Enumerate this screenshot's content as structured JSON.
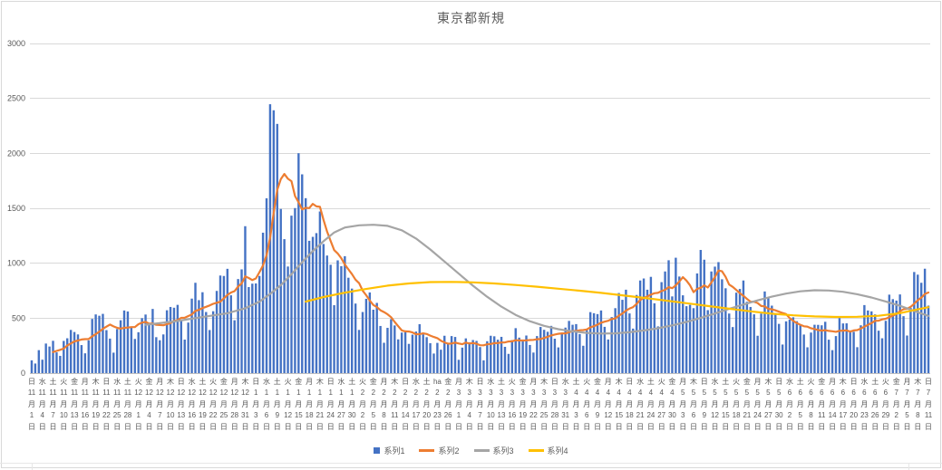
{
  "legend": [
    {
      "label": "系列1",
      "color": "#4472C4",
      "type": "bar"
    },
    {
      "label": "系列2",
      "color": "#ED7D31",
      "type": "line"
    },
    {
      "label": "系列3",
      "color": "#A5A5A5",
      "type": "line"
    },
    {
      "label": "系列4",
      "color": "#FFC000",
      "type": "line"
    }
  ],
  "chart_data": {
    "type": "combo",
    "title": "東京都新規",
    "grid": true,
    "legend_position": "bottom",
    "colors": {
      "grid": "#D9D9D9",
      "axis_text": "#595959",
      "axis_line": "#BFBFBF",
      "title": "#595959"
    },
    "y_axis": {
      "min": 0,
      "max": 3000,
      "step": 500,
      "ticks": [
        "0",
        "500",
        "1000",
        "1500",
        "2000",
        "2500",
        "3000"
      ]
    },
    "x_axis_note": "daily values 2020-11-01 to 2021-07-11, tick label every 3 days, vertical labels: weekday + M月D日",
    "x_tick_every": 3,
    "x_tick_labels": [
      [
        "日",
        "11",
        "1"
      ],
      [
        "水",
        "11",
        "4"
      ],
      [
        "土",
        "11",
        "7"
      ],
      [
        "火",
        "11",
        "10"
      ],
      [
        "金",
        "11",
        "13"
      ],
      [
        "月",
        "11",
        "16"
      ],
      [
        "木",
        "11",
        "19"
      ],
      [
        "日",
        "11",
        "22"
      ],
      [
        "水",
        "11",
        "25"
      ],
      [
        "土",
        "11",
        "28"
      ],
      [
        "火",
        "12",
        "1"
      ],
      [
        "金",
        "12",
        "4"
      ],
      [
        "月",
        "12",
        "7"
      ],
      [
        "木",
        "12",
        "10"
      ],
      [
        "日",
        "12",
        "13"
      ],
      [
        "水",
        "12",
        "16"
      ],
      [
        "土",
        "12",
        "19"
      ],
      [
        "火",
        "12",
        "22"
      ],
      [
        "金",
        "12",
        "25"
      ],
      [
        "月",
        "12",
        "28"
      ],
      [
        "木",
        "12",
        "31"
      ],
      [
        "日",
        "1",
        "3"
      ],
      [
        "水",
        "1",
        "6"
      ],
      [
        "土",
        "1",
        "9"
      ],
      [
        "火",
        "1",
        "12"
      ],
      [
        "金",
        "1",
        "15"
      ],
      [
        "月",
        "1",
        "18"
      ],
      [
        "木",
        "1",
        "21"
      ],
      [
        "日",
        "1",
        "24"
      ],
      [
        "水",
        "1",
        "27"
      ],
      [
        "土",
        "1",
        "30"
      ],
      [
        "火",
        "2",
        "2"
      ],
      [
        "金",
        "2",
        "5"
      ],
      [
        "月",
        "2",
        "8"
      ],
      [
        "木",
        "2",
        "11"
      ],
      [
        "日",
        "2",
        "14"
      ],
      [
        "水",
        "2",
        "17"
      ],
      [
        "土",
        "2",
        "20"
      ],
      [
        "ha",
        "2",
        "23"
      ],
      [
        "金",
        "2",
        "26"
      ],
      [
        "月",
        "3",
        "1"
      ],
      [
        "木",
        "3",
        "4"
      ],
      [
        "日",
        "3",
        "7"
      ],
      [
        "水",
        "3",
        "10"
      ],
      [
        "土",
        "3",
        "13"
      ],
      [
        "火",
        "3",
        "16"
      ],
      [
        "金",
        "3",
        "19"
      ],
      [
        "月",
        "3",
        "22"
      ],
      [
        "木",
        "3",
        "25"
      ],
      [
        "日",
        "3",
        "28"
      ],
      [
        "水",
        "3",
        "31"
      ],
      [
        "土",
        "4",
        "3"
      ],
      [
        "火",
        "4",
        "6"
      ],
      [
        "金",
        "4",
        "9"
      ],
      [
        "月",
        "4",
        "12"
      ],
      [
        "木",
        "4",
        "15"
      ],
      [
        "日",
        "4",
        "18"
      ],
      [
        "水",
        "4",
        "21"
      ],
      [
        "土",
        "4",
        "24"
      ],
      [
        "火",
        "4",
        "27"
      ],
      [
        "金",
        "4",
        "30"
      ],
      [
        "月",
        "5",
        "3"
      ],
      [
        "木",
        "5",
        "6"
      ],
      [
        "日",
        "5",
        "9"
      ],
      [
        "水",
        "5",
        "12"
      ],
      [
        "土",
        "5",
        "15"
      ],
      [
        "火",
        "5",
        "18"
      ],
      [
        "金",
        "5",
        "21"
      ],
      [
        "月",
        "5",
        "24"
      ],
      [
        "木",
        "5",
        "27"
      ],
      [
        "日",
        "5",
        "30"
      ],
      [
        "水",
        "6",
        "2"
      ],
      [
        "土",
        "6",
        "5"
      ],
      [
        "火",
        "6",
        "8"
      ],
      [
        "金",
        "6",
        "11"
      ],
      [
        "月",
        "6",
        "14"
      ],
      [
        "木",
        "6",
        "17"
      ],
      [
        "日",
        "6",
        "20"
      ],
      [
        "水",
        "6",
        "23"
      ],
      [
        "土",
        "6",
        "26"
      ],
      [
        "火",
        "6",
        "29"
      ],
      [
        "金",
        "7",
        "2"
      ],
      [
        "月",
        "7",
        "5"
      ],
      [
        "木",
        "7",
        "8"
      ],
      [
        "日",
        "7",
        "11"
      ]
    ],
    "series": [
      {
        "name": "系列1",
        "type": "bar",
        "color": "#4472C4",
        "values": [
          116,
          87,
          209,
          122,
          269,
          242,
          294,
          189,
          157,
          293,
          317,
          393,
          374,
          352,
          255,
          180,
          298,
          493,
          534,
          522,
          539,
          391,
          314,
          186,
          401,
          481,
          570,
          561,
          418,
          311,
          372,
          500,
          533,
          449,
          584,
          327,
          299,
          352,
          572,
          602,
          595,
          621,
          480,
          305,
          460,
          678,
          822,
          664,
          736,
          556,
          392,
          563,
          748,
          888,
          884,
          949,
          708,
          481,
          856,
          944,
          1337,
          783,
          814,
          816,
          884,
          1278,
          1591,
          2447,
          2392,
          2268,
          1494,
          1219,
          970,
          1433,
          1502,
          2001,
          1809,
          1592,
          1204,
          1240,
          1274,
          1471,
          1175,
          1070,
          986,
          618,
          1026,
          973,
          1064,
          868,
          769,
          633,
          393,
          556,
          676,
          734,
          577,
          639,
          429,
          276,
          412,
          491,
          434,
          307,
          369,
          371,
          266,
          350,
          378,
          445,
          353,
          327,
          272,
          178,
          275,
          213,
          340,
          270,
          337,
          329,
          121,
          232,
          316,
          279,
          301,
          293,
          237,
          116,
          290,
          340,
          335,
          304,
          330,
          239,
          175,
          300,
          409,
          323,
          303,
          342,
          256,
          187,
          337,
          420,
          394,
          376,
          430,
          313,
          234,
          364,
          414,
          475,
          440,
          446,
          355,
          249,
          399,
          555,
          545,
          537,
          570,
          421,
          306,
          510,
          591,
          729,
          667,
          759,
          543,
          405,
          711,
          843,
          861,
          759,
          876,
          635,
          425,
          828,
          925,
          1027,
          698,
          1050,
          879,
          708,
          609,
          621,
          591,
          907,
          1121,
          1032,
          573,
          925,
          969,
          1010,
          854,
          772,
          542,
          419,
          732,
          766,
          843,
          649,
          602,
          535,
          340,
          542,
          743,
          684,
          614,
          539,
          448,
          260,
          471,
          487,
          508,
          472,
          436,
          351,
          235,
          369,
          440,
          439,
          435,
          467,
          304,
          209,
          337,
          501,
          452,
          453,
          388,
          376,
          236,
          435,
          619,
          570,
          562,
          534,
          386,
          317,
          476,
          714,
          673,
          660,
          716,
          518,
          342,
          593,
          920,
          896,
          822,
          950,
          614
        ]
      },
      {
        "name": "系列2",
        "type": "line",
        "color": "#ED7D31",
        "derivation": "7-day moving average of 系列1",
        "window": 7
      },
      {
        "name": "系列3",
        "type": "line",
        "color": "#A5A5A5",
        "points": [
          [
            32,
            440
          ],
          [
            40,
            470
          ],
          [
            48,
            510
          ],
          [
            55,
            545
          ],
          [
            60,
            590
          ],
          [
            64,
            650
          ],
          [
            67,
            720
          ],
          [
            70,
            800
          ],
          [
            73,
            900
          ],
          [
            76,
            1010
          ],
          [
            79,
            1110
          ],
          [
            82,
            1200
          ],
          [
            85,
            1280
          ],
          [
            88,
            1325
          ],
          [
            92,
            1345
          ],
          [
            96,
            1350
          ],
          [
            100,
            1340
          ],
          [
            104,
            1300
          ],
          [
            108,
            1225
          ],
          [
            112,
            1125
          ],
          [
            116,
            1015
          ],
          [
            120,
            905
          ],
          [
            124,
            795
          ],
          [
            128,
            695
          ],
          [
            132,
            605
          ],
          [
            136,
            530
          ],
          [
            140,
            472
          ],
          [
            144,
            430
          ],
          [
            148,
            400
          ],
          [
            152,
            380
          ],
          [
            156,
            366
          ],
          [
            160,
            360
          ],
          [
            164,
            362
          ],
          [
            168,
            372
          ],
          [
            172,
            388
          ],
          [
            176,
            408
          ],
          [
            180,
            434
          ],
          [
            184,
            466
          ],
          [
            188,
            502
          ],
          [
            192,
            542
          ],
          [
            196,
            584
          ],
          [
            200,
            624
          ],
          [
            204,
            662
          ],
          [
            208,
            696
          ],
          [
            212,
            724
          ],
          [
            216,
            744
          ],
          [
            220,
            754
          ],
          [
            224,
            752
          ],
          [
            228,
            740
          ],
          [
            232,
            718
          ],
          [
            236,
            688
          ],
          [
            240,
            652
          ],
          [
            244,
            612
          ],
          [
            248,
            566
          ],
          [
            252,
            520
          ]
        ]
      },
      {
        "name": "系列4",
        "type": "line",
        "color": "#FFC000",
        "points": [
          [
            77,
            650
          ],
          [
            82,
            692
          ],
          [
            88,
            732
          ],
          [
            94,
            766
          ],
          [
            100,
            796
          ],
          [
            106,
            816
          ],
          [
            112,
            828
          ],
          [
            118,
            830
          ],
          [
            124,
            826
          ],
          [
            130,
            816
          ],
          [
            136,
            802
          ],
          [
            142,
            786
          ],
          [
            148,
            768
          ],
          [
            154,
            750
          ],
          [
            160,
            730
          ],
          [
            166,
            708
          ],
          [
            172,
            685
          ],
          [
            178,
            661
          ],
          [
            184,
            636
          ],
          [
            190,
            611
          ],
          [
            196,
            586
          ],
          [
            202,
            562
          ],
          [
            208,
            541
          ],
          [
            214,
            526
          ],
          [
            220,
            516
          ],
          [
            226,
            511
          ],
          [
            232,
            513
          ],
          [
            238,
            522
          ],
          [
            244,
            546
          ],
          [
            248,
            574
          ],
          [
            252,
            600
          ]
        ]
      }
    ]
  }
}
